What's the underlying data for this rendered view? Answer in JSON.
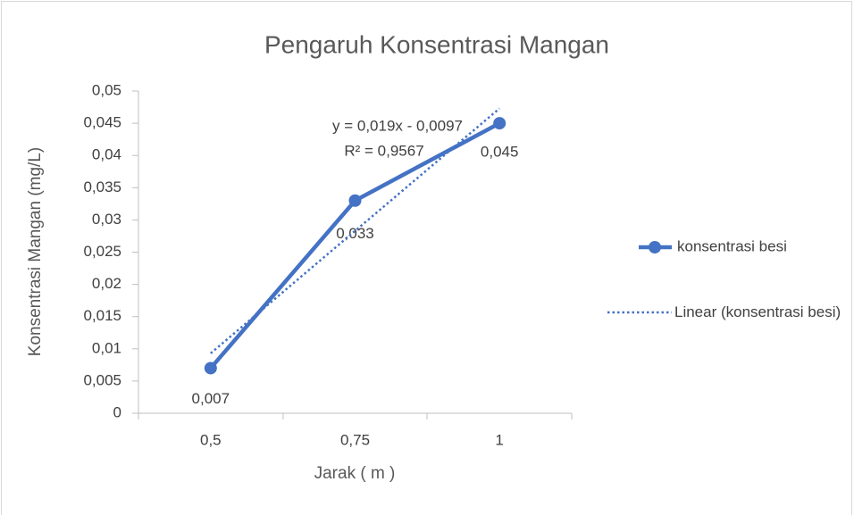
{
  "chart_data": {
    "type": "line",
    "title": "Pengaruh Konsentrasi Mangan",
    "x_label": "Jarak ( m )",
    "y_label": "Konsentrasi Mangan (mg/L)",
    "categories": [
      "0,5",
      "0,75",
      "1"
    ],
    "series": [
      {
        "name": "konsentrasi besi",
        "color": "#4472c4",
        "style": "solid",
        "markers": true,
        "values": [
          0.007,
          0.033,
          0.045
        ],
        "value_labels": [
          "0,007",
          "0,033",
          "0,045"
        ]
      },
      {
        "name": "Linear (konsentrasi besi)",
        "color": "#4472c4",
        "style": "dotted",
        "markers": false,
        "values": [
          0.0093,
          0.0283,
          0.0473
        ]
      }
    ],
    "annotations": [
      "y = 0,019x - 0,0097",
      "R² = 0,9567"
    ],
    "ylim": [
      0,
      0.05
    ],
    "yticks": [
      0,
      {
        "value": 0.005,
        "label": "0,005"
      },
      {
        "value": 0.01,
        "label": "0,01"
      },
      {
        "value": 0.015,
        "label": "0,015"
      },
      {
        "value": 0.02,
        "label": "0,02"
      },
      {
        "value": 0.025,
        "label": "0,025"
      },
      {
        "value": 0.03,
        "label": "0,03"
      },
      {
        "value": 0.035,
        "label": "0,035"
      },
      {
        "value": 0.04,
        "label": "0,04"
      },
      {
        "value": 0.045,
        "label": "0,045"
      },
      {
        "value": 0.05,
        "label": "0,05"
      }
    ],
    "grid": false,
    "legend": "right"
  }
}
